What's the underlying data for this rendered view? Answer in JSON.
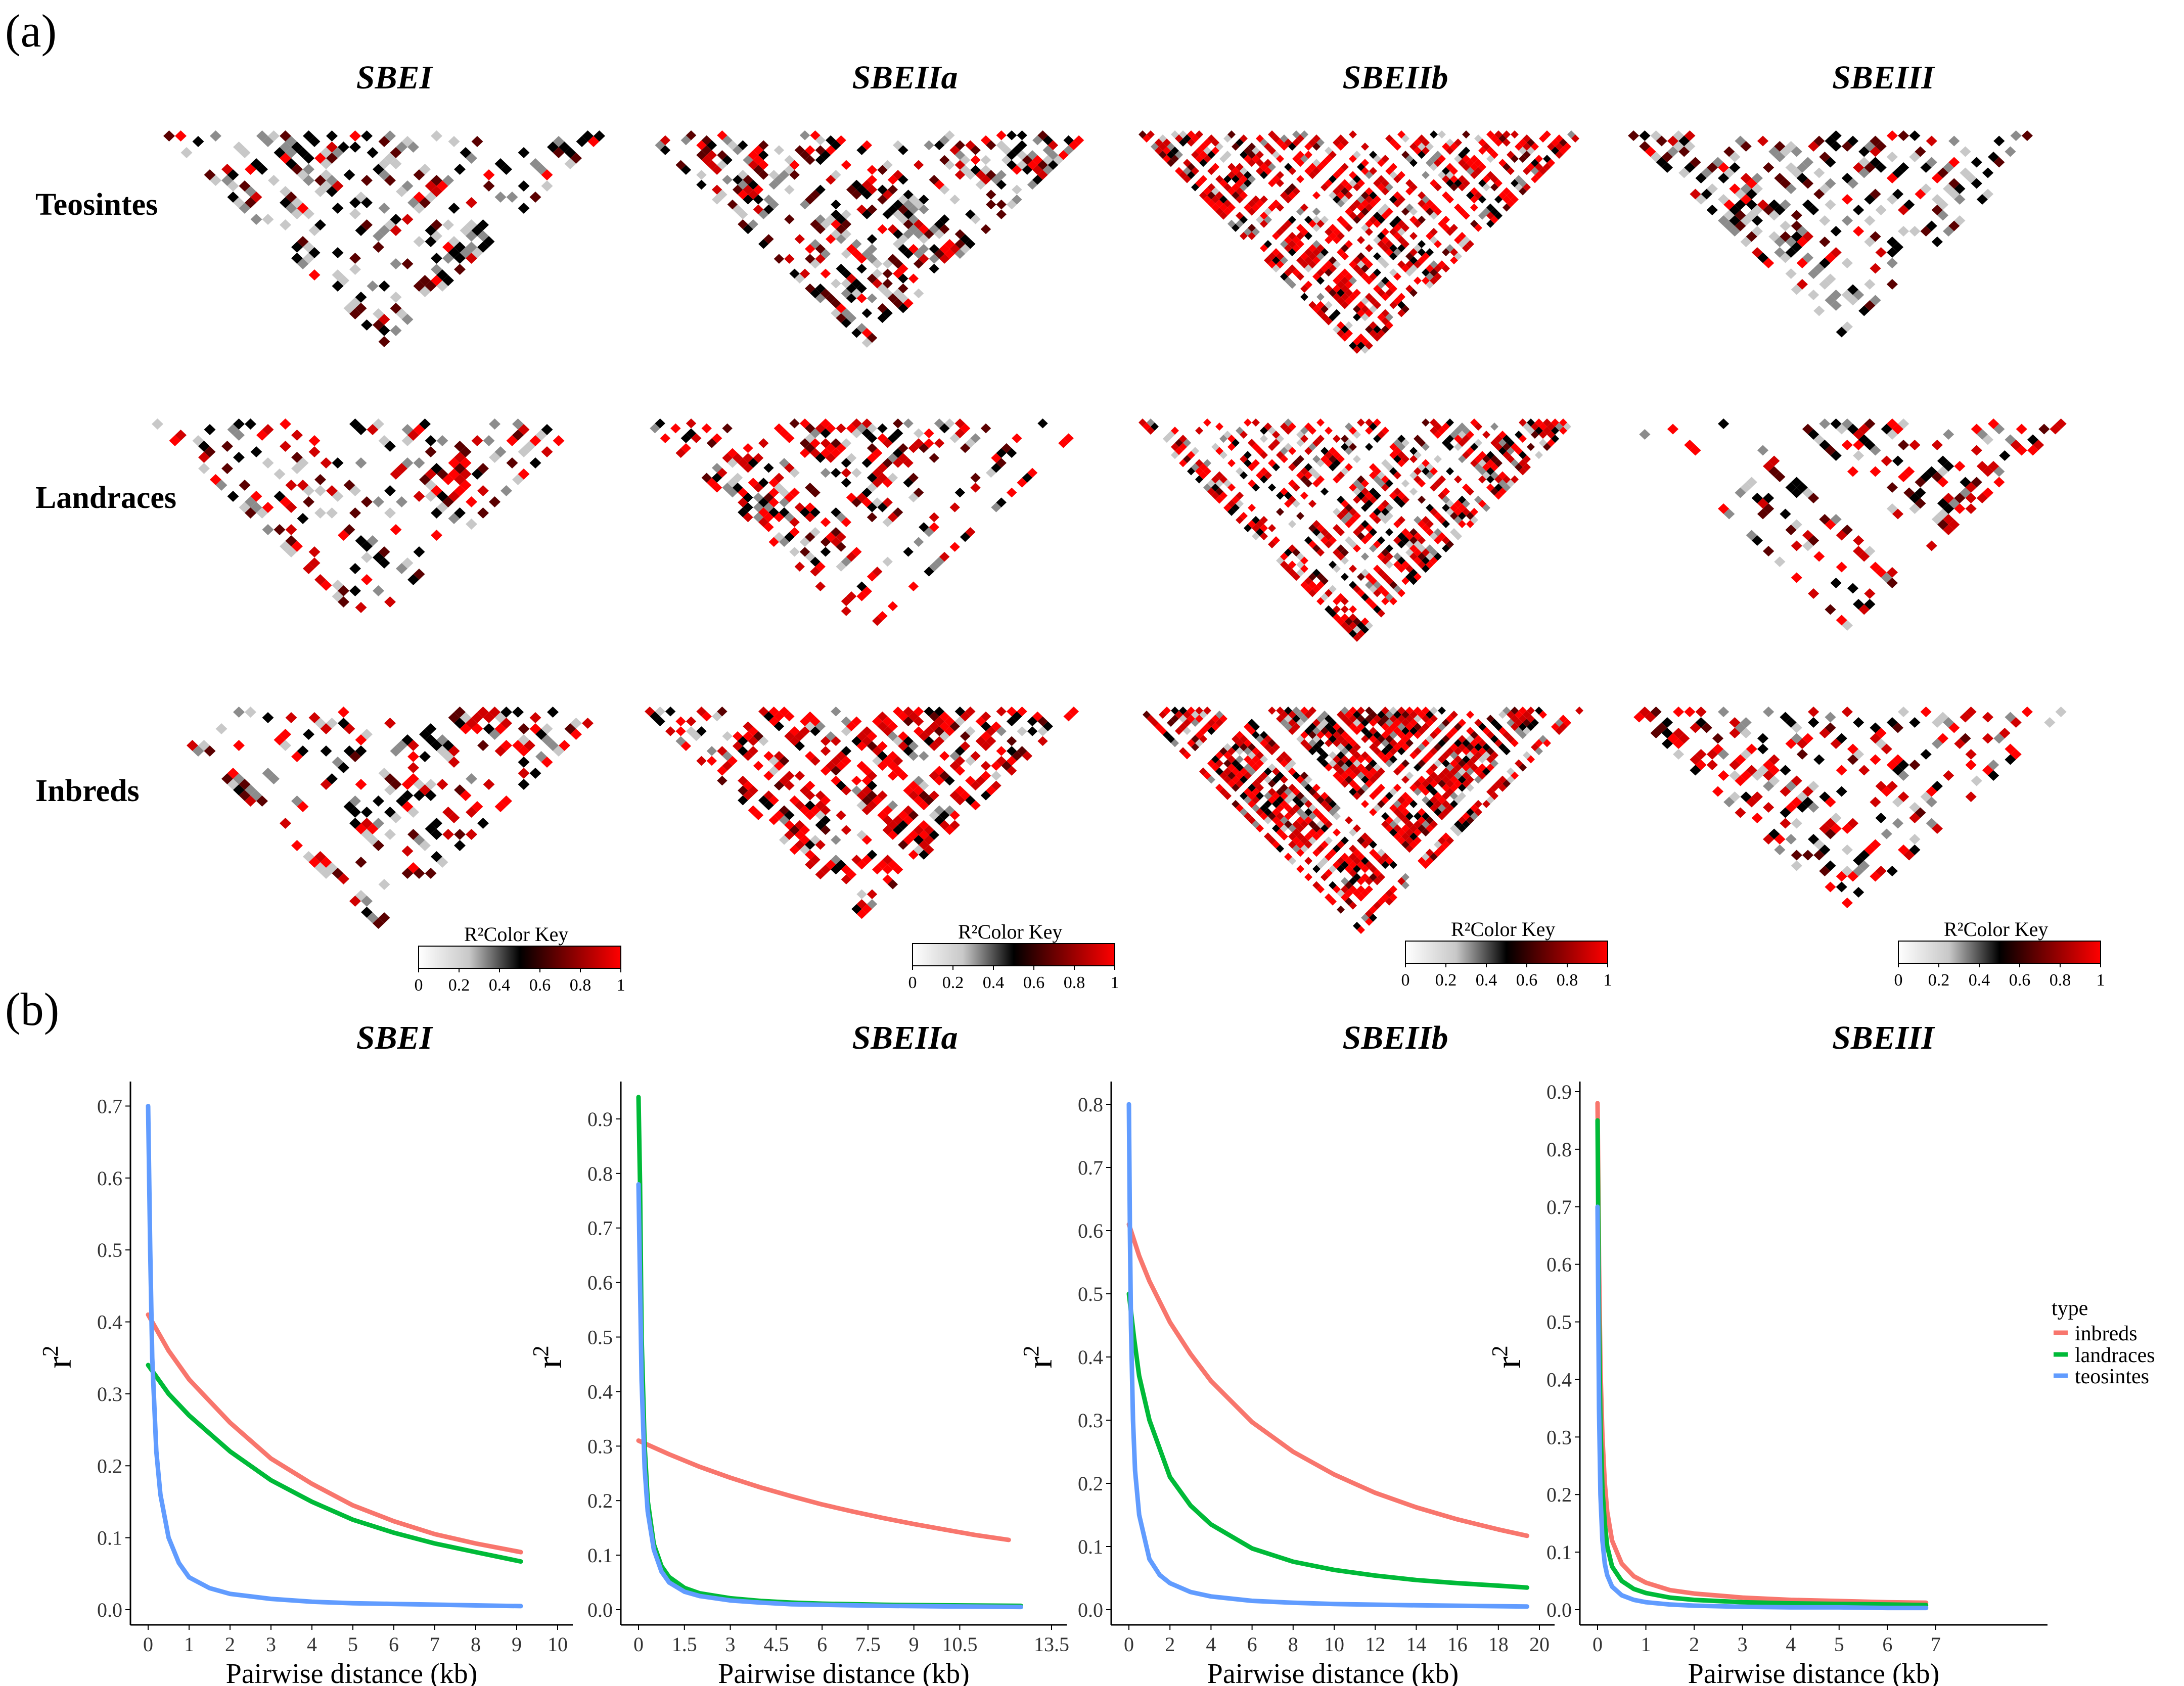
{
  "panel_a": {
    "label": "(a)",
    "genes": [
      "SBEI",
      "SBEIIa",
      "SBEIIb",
      "SBEIII"
    ],
    "populations": [
      "Teosintes",
      "Landraces",
      "Inbreds"
    ],
    "color_key": {
      "title": "R²Color Key",
      "ticks": [
        "0",
        "0.2",
        "0.4",
        "0.6",
        "0.8",
        "1"
      ],
      "colors": [
        "#ffffff",
        "#c8c8c8",
        "#000000",
        "#ff0000"
      ]
    }
  },
  "panel_b": {
    "label": "(b)",
    "ylabel": "r",
    "ylabel_sup": "2",
    "legend": {
      "title": "type",
      "entries": [
        {
          "name": "inbreds",
          "color": "#f8766d"
        },
        {
          "name": "landraces",
          "color": "#00ba38"
        },
        {
          "name": "teosintes",
          "color": "#619cff"
        }
      ]
    }
  },
  "chart_data": [
    {
      "type": "line",
      "title": "SBEI",
      "xlabel": "Pairwise distance (kb)",
      "ylabel": "r2",
      "xlim": [
        0,
        10
      ],
      "ylim": [
        0,
        0.72
      ],
      "xticks": [
        "0",
        "1",
        "2",
        "3",
        "4",
        "5",
        "6",
        "7",
        "8",
        "9",
        "10"
      ],
      "xtick_values": [
        0,
        1,
        2,
        3,
        4,
        5,
        6,
        7,
        8,
        9,
        10
      ],
      "yticks": [
        "0.0",
        "0.1",
        "0.2",
        "0.3",
        "0.4",
        "0.5",
        "0.6",
        "0.7"
      ],
      "ytick_values": [
        0,
        0.1,
        0.2,
        0.3,
        0.4,
        0.5,
        0.6,
        0.7
      ],
      "series": [
        {
          "name": "inbreds",
          "x": [
            0,
            0.5,
            1,
            1.5,
            2,
            3,
            4,
            5,
            6,
            7,
            8,
            9.1
          ],
          "values": [
            0.41,
            0.36,
            0.32,
            0.29,
            0.26,
            0.21,
            0.175,
            0.145,
            0.123,
            0.105,
            0.092,
            0.08
          ]
        },
        {
          "name": "landraces",
          "x": [
            0,
            0.5,
            1,
            1.5,
            2,
            3,
            4,
            5,
            6,
            7,
            8,
            9.1
          ],
          "values": [
            0.34,
            0.3,
            0.27,
            0.245,
            0.22,
            0.18,
            0.15,
            0.125,
            0.107,
            0.092,
            0.08,
            0.067
          ]
        },
        {
          "name": "teosintes",
          "x": [
            0,
            0.05,
            0.1,
            0.2,
            0.3,
            0.5,
            0.75,
            1,
            1.5,
            2,
            3,
            4,
            5,
            6,
            7,
            8,
            9.1
          ],
          "values": [
            0.7,
            0.5,
            0.35,
            0.22,
            0.16,
            0.1,
            0.065,
            0.045,
            0.03,
            0.022,
            0.015,
            0.011,
            0.009,
            0.008,
            0.007,
            0.006,
            0.005
          ]
        }
      ]
    },
    {
      "type": "line",
      "title": "SBEIIa",
      "xlabel": "Pairwise distance (kb)",
      "ylabel": "r2",
      "xlim": [
        0,
        13.5
      ],
      "ylim": [
        0,
        0.95
      ],
      "xticks": [
        "0",
        "1.5",
        "3",
        "4.5",
        "6",
        "7.5",
        "9",
        "10.5",
        "13.5"
      ],
      "xtick_values": [
        0,
        1.5,
        3,
        4.5,
        6,
        7.5,
        9,
        10.5,
        13.5
      ],
      "yticks": [
        "0.0",
        "0.1",
        "0.2",
        "0.3",
        "0.4",
        "0.5",
        "0.6",
        "0.7",
        "0.8",
        "0.9"
      ],
      "ytick_values": [
        0,
        0.1,
        0.2,
        0.3,
        0.4,
        0.5,
        0.6,
        0.7,
        0.8,
        0.9
      ],
      "series": [
        {
          "name": "inbreds",
          "x": [
            0,
            1,
            2,
            3,
            4,
            5,
            6,
            7,
            8,
            9,
            10,
            11,
            12.1
          ],
          "values": [
            0.31,
            0.285,
            0.262,
            0.242,
            0.224,
            0.208,
            0.193,
            0.18,
            0.168,
            0.157,
            0.147,
            0.137,
            0.128
          ]
        },
        {
          "name": "landraces",
          "x": [
            0,
            0.05,
            0.1,
            0.2,
            0.3,
            0.5,
            0.75,
            1,
            1.5,
            2,
            3,
            4,
            5,
            6,
            8,
            10,
            12.5
          ],
          "values": [
            0.94,
            0.78,
            0.5,
            0.3,
            0.2,
            0.12,
            0.08,
            0.06,
            0.04,
            0.03,
            0.021,
            0.016,
            0.013,
            0.011,
            0.009,
            0.008,
            0.007
          ]
        },
        {
          "name": "teosintes",
          "x": [
            0,
            0.05,
            0.1,
            0.2,
            0.3,
            0.5,
            0.75,
            1,
            1.5,
            2,
            3,
            4,
            5,
            6,
            8,
            10,
            12.5
          ],
          "values": [
            0.78,
            0.6,
            0.42,
            0.26,
            0.18,
            0.11,
            0.07,
            0.05,
            0.033,
            0.025,
            0.017,
            0.013,
            0.01,
            0.009,
            0.007,
            0.006,
            0.005
          ]
        }
      ]
    },
    {
      "type": "line",
      "title": "SBEIIb",
      "xlabel": "Pairwise distance (kb)",
      "ylabel": "r2",
      "xlim": [
        0,
        20
      ],
      "ylim": [
        0,
        0.82
      ],
      "xticks": [
        "0",
        "2",
        "4",
        "6",
        "8",
        "10",
        "12",
        "14",
        "16",
        "18",
        "20"
      ],
      "xtick_values": [
        0,
        2,
        4,
        6,
        8,
        10,
        12,
        14,
        16,
        18,
        20
      ],
      "yticks": [
        "0.0",
        "0.1",
        "0.2",
        "0.3",
        "0.4",
        "0.5",
        "0.6",
        "0.7",
        "0.8"
      ],
      "ytick_values": [
        0,
        0.1,
        0.2,
        0.3,
        0.4,
        0.5,
        0.6,
        0.7,
        0.8
      ],
      "series": [
        {
          "name": "inbreds",
          "x": [
            0,
            0.5,
            1,
            2,
            3,
            4,
            6,
            8,
            10,
            12,
            14,
            16,
            18,
            19.4
          ],
          "values": [
            0.61,
            0.56,
            0.52,
            0.455,
            0.405,
            0.362,
            0.297,
            0.25,
            0.214,
            0.185,
            0.162,
            0.143,
            0.127,
            0.117
          ]
        },
        {
          "name": "landraces",
          "x": [
            0,
            0.25,
            0.5,
            1,
            2,
            3,
            4,
            6,
            8,
            10,
            12,
            14,
            16,
            18,
            19.4
          ],
          "values": [
            0.5,
            0.43,
            0.37,
            0.3,
            0.21,
            0.165,
            0.135,
            0.097,
            0.076,
            0.063,
            0.054,
            0.047,
            0.042,
            0.038,
            0.035
          ]
        },
        {
          "name": "teosintes",
          "x": [
            0,
            0.05,
            0.1,
            0.2,
            0.3,
            0.5,
            1,
            1.5,
            2,
            3,
            4,
            6,
            8,
            10,
            14,
            19.4
          ],
          "values": [
            0.8,
            0.6,
            0.45,
            0.3,
            0.22,
            0.15,
            0.08,
            0.055,
            0.042,
            0.028,
            0.021,
            0.014,
            0.011,
            0.009,
            0.007,
            0.005
          ]
        }
      ]
    },
    {
      "type": "line",
      "title": "SBEIII",
      "xlabel": "Pairwise distance (kb)",
      "ylabel": "r2",
      "xlim": [
        0,
        9
      ],
      "ylim": [
        0,
        0.9
      ],
      "xticks": [
        "0",
        "1",
        "2",
        "3",
        "4",
        "5",
        "6",
        "7"
      ],
      "xtick_values": [
        0,
        1,
        2,
        3,
        4,
        5,
        6,
        7
      ],
      "yticks": [
        "0.0",
        "0.1",
        "0.2",
        "0.3",
        "0.4",
        "0.5",
        "0.6",
        "0.7",
        "0.8",
        "0.9"
      ],
      "ytick_values": [
        0,
        0.1,
        0.2,
        0.3,
        0.4,
        0.5,
        0.6,
        0.7,
        0.8,
        0.9
      ],
      "series": [
        {
          "name": "inbreds",
          "x": [
            0,
            0.03,
            0.06,
            0.1,
            0.15,
            0.2,
            0.3,
            0.5,
            0.75,
            1,
            1.5,
            2,
            3,
            4,
            5,
            6,
            6.8
          ],
          "values": [
            0.88,
            0.6,
            0.42,
            0.3,
            0.22,
            0.17,
            0.12,
            0.08,
            0.058,
            0.047,
            0.034,
            0.028,
            0.021,
            0.017,
            0.015,
            0.013,
            0.012
          ]
        },
        {
          "name": "landraces",
          "x": [
            0,
            0.03,
            0.06,
            0.1,
            0.15,
            0.2,
            0.3,
            0.5,
            0.75,
            1,
            1.5,
            2,
            3,
            4,
            5,
            6,
            6.8
          ],
          "values": [
            0.85,
            0.5,
            0.32,
            0.21,
            0.15,
            0.11,
            0.075,
            0.05,
            0.036,
            0.029,
            0.021,
            0.017,
            0.013,
            0.011,
            0.01,
            0.009,
            0.008
          ]
        },
        {
          "name": "teosintes",
          "x": [
            0,
            0.03,
            0.06,
            0.1,
            0.15,
            0.2,
            0.3,
            0.5,
            0.75,
            1,
            1.5,
            2,
            3,
            4,
            5,
            6,
            6.8
          ],
          "values": [
            0.7,
            0.35,
            0.2,
            0.12,
            0.08,
            0.06,
            0.04,
            0.025,
            0.017,
            0.013,
            0.009,
            0.007,
            0.005,
            0.004,
            0.004,
            0.003,
            0.003
          ]
        }
      ]
    }
  ]
}
